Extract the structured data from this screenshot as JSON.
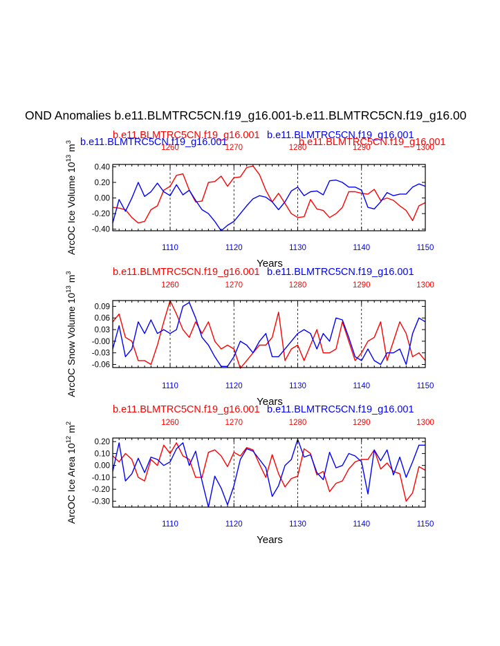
{
  "page_title": "OND Anomalies b.e11.BLMTRC5CN.f19_g16.001-b.e11.BLMTRC5CN.f19_g16.00",
  "colors": {
    "case_a": "#ff0000",
    "case_b": "#0000ff",
    "axis": "#000000"
  },
  "chart_data": [
    {
      "type": "line",
      "id": "ice_volume",
      "ylabel": "ArcOC Ice Volume 10",
      "ylabel_exp": "13",
      "ylabel_unit": " m",
      "ylabel_unit_exp": "3",
      "xlabel": "Years",
      "series_label_red": "b.e11.BLMTRC5CN.f19_g16.001",
      "series_label_blue": "b.e11.BLMTRC5CN.f19_g16.001",
      "series_label_blue_left": "b.e11.BLMTRC5CN.f19_g16.001",
      "series_label_red_right": "b.e11.BLMTRC5CN.f19_g16.001",
      "xlim": [
        1101,
        1150
      ],
      "ylim": [
        -0.42,
        0.43
      ],
      "y_ticks": [
        -0.4,
        -0.2,
        0.0,
        0.2,
        0.4
      ],
      "y_tick_labels": [
        "-0.40",
        "-0.20",
        "0.00",
        "0.20",
        "0.40"
      ],
      "bottom_ticks": [
        1110,
        1120,
        1130,
        1140,
        1150
      ],
      "top_tick_labels": [
        "1260",
        "1270",
        "1280",
        "1290",
        "1300"
      ],
      "x": [
        1101,
        1102,
        1103,
        1104,
        1105,
        1106,
        1107,
        1108,
        1109,
        1110,
        1111,
        1112,
        1113,
        1114,
        1115,
        1116,
        1117,
        1118,
        1119,
        1120,
        1121,
        1122,
        1123,
        1124,
        1125,
        1126,
        1127,
        1128,
        1129,
        1130,
        1131,
        1132,
        1133,
        1134,
        1135,
        1136,
        1137,
        1138,
        1139,
        1140,
        1141,
        1142,
        1143,
        1144,
        1145,
        1146,
        1147,
        1148,
        1149,
        1150
      ],
      "series": [
        {
          "name": "red",
          "color": "#ff0000",
          "values": [
            -0.12,
            -0.13,
            -0.15,
            -0.25,
            -0.32,
            -0.3,
            -0.15,
            -0.1,
            0.1,
            0.15,
            0.29,
            0.31,
            0.1,
            -0.05,
            -0.04,
            0.2,
            0.21,
            0.28,
            0.15,
            0.26,
            0.27,
            0.39,
            0.41,
            0.3,
            0.1,
            -0.05,
            0.06,
            -0.07,
            -0.2,
            -0.25,
            -0.24,
            -0.02,
            -0.14,
            -0.16,
            -0.25,
            -0.2,
            -0.12,
            0.08,
            0.08,
            0.06,
            0.05,
            0.11,
            -0.03,
            0.0,
            -0.03,
            -0.1,
            -0.16,
            -0.29,
            -0.1,
            -0.06
          ]
        },
        {
          "name": "blue",
          "color": "#0000ff",
          "values": [
            -0.32,
            -0.02,
            -0.17,
            0.0,
            0.2,
            0.02,
            0.08,
            0.19,
            0.08,
            0.03,
            0.17,
            0.04,
            0.1,
            -0.03,
            -0.15,
            -0.2,
            -0.3,
            -0.42,
            -0.35,
            -0.3,
            -0.2,
            -0.1,
            -0.01,
            0.03,
            0.01,
            -0.05,
            -0.15,
            -0.05,
            0.09,
            0.14,
            0.03,
            0.08,
            0.09,
            0.04,
            0.22,
            0.23,
            0.2,
            0.14,
            0.14,
            0.1,
            -0.12,
            -0.14,
            -0.05,
            0.07,
            0.03,
            0.05,
            0.05,
            0.14,
            0.18,
            0.15
          ]
        }
      ]
    },
    {
      "type": "line",
      "id": "snow_volume",
      "ylabel": "ArcOC Snow Volume 10",
      "ylabel_exp": "13",
      "ylabel_unit": " m",
      "ylabel_unit_exp": "3",
      "xlabel": "Years",
      "series_label_red": "b.e11.BLMTRC5CN.f19_g16.001",
      "series_label_blue": "b.e11.BLMTRC5CN.f19_g16.001",
      "xlim": [
        1101,
        1150
      ],
      "ylim": [
        -0.068,
        0.105
      ],
      "y_ticks": [
        -0.06,
        -0.03,
        0.0,
        0.03,
        0.06,
        0.09
      ],
      "y_tick_labels": [
        "-0.06",
        "-0.03",
        "-0.00",
        "0.03",
        "0.06",
        "0.09"
      ],
      "bottom_ticks": [
        1110,
        1120,
        1130,
        1140,
        1150
      ],
      "top_tick_labels": [
        "1260",
        "1270",
        "1280",
        "1290",
        "1300"
      ],
      "x": [
        1101,
        1102,
        1103,
        1104,
        1105,
        1106,
        1107,
        1108,
        1109,
        1110,
        1111,
        1112,
        1113,
        1114,
        1115,
        1116,
        1117,
        1118,
        1119,
        1120,
        1121,
        1122,
        1123,
        1124,
        1125,
        1126,
        1127,
        1128,
        1129,
        1130,
        1131,
        1132,
        1133,
        1134,
        1135,
        1136,
        1137,
        1138,
        1139,
        1140,
        1141,
        1142,
        1143,
        1144,
        1145,
        1146,
        1147,
        1148,
        1149,
        1150
      ],
      "series": [
        {
          "name": "red",
          "color": "#ff0000",
          "values": [
            0.05,
            0.07,
            0.01,
            0.0,
            -0.05,
            -0.05,
            -0.06,
            -0.01,
            0.05,
            0.105,
            0.07,
            0.03,
            0.01,
            0.05,
            0.02,
            0.05,
            0.0,
            -0.02,
            -0.01,
            -0.02,
            -0.07,
            -0.05,
            -0.03,
            -0.01,
            -0.01,
            0.01,
            0.075,
            -0.05,
            -0.02,
            -0.01,
            -0.05,
            -0.01,
            0.03,
            -0.03,
            -0.03,
            -0.02,
            0.05,
            0.0,
            -0.05,
            -0.03,
            0.0,
            0.01,
            0.05,
            -0.05,
            0.0,
            0.05,
            0.02,
            -0.04,
            -0.03,
            -0.05
          ]
        },
        {
          "name": "blue",
          "color": "#0000ff",
          "values": [
            -0.02,
            0.04,
            -0.04,
            -0.02,
            0.05,
            0.02,
            0.055,
            0.02,
            0.03,
            0.02,
            0.03,
            0.09,
            0.1,
            0.06,
            0.01,
            -0.01,
            -0.04,
            -0.065,
            -0.065,
            -0.04,
            0.0,
            -0.01,
            -0.03,
            0.0,
            0.02,
            -0.04,
            -0.04,
            -0.02,
            0.0,
            0.02,
            0.03,
            0.02,
            -0.02,
            0.02,
            0.0,
            0.06,
            0.055,
            0.01,
            -0.04,
            -0.05,
            -0.02,
            -0.05,
            -0.06,
            -0.03,
            -0.03,
            -0.02,
            -0.06,
            0.02,
            0.06,
            0.05
          ]
        }
      ]
    },
    {
      "type": "line",
      "id": "ice_area",
      "ylabel": "ArcOC Ice Area 10",
      "ylabel_exp": "12",
      "ylabel_unit": " m",
      "ylabel_unit_exp": "2",
      "xlabel": "Years",
      "series_label_red": "b.e11.BLMTRC5CN.f19_g16.001",
      "series_label_blue": "b.e11.BLMTRC5CN.f19_g16.001",
      "xlim": [
        1101,
        1150
      ],
      "ylim": [
        -0.35,
        0.23
      ],
      "y_ticks": [
        -0.3,
        -0.2,
        -0.1,
        0.0,
        0.1,
        0.2
      ],
      "y_tick_labels": [
        "-0.30",
        "-0.20",
        "-0.10",
        "0.00",
        "0.10",
        "0.20"
      ],
      "bottom_ticks": [
        1110,
        1120,
        1130,
        1140,
        1150
      ],
      "top_tick_labels": [
        "1260",
        "1270",
        "1280",
        "1290",
        "1300"
      ],
      "x": [
        1101,
        1102,
        1103,
        1104,
        1105,
        1106,
        1107,
        1108,
        1109,
        1110,
        1111,
        1112,
        1113,
        1114,
        1115,
        1116,
        1117,
        1118,
        1119,
        1120,
        1121,
        1122,
        1123,
        1124,
        1125,
        1126,
        1127,
        1128,
        1129,
        1130,
        1131,
        1132,
        1133,
        1134,
        1135,
        1136,
        1137,
        1138,
        1139,
        1140,
        1141,
        1142,
        1143,
        1144,
        1145,
        1146,
        1147,
        1148,
        1149,
        1150
      ],
      "series": [
        {
          "name": "red",
          "color": "#ff0000",
          "values": [
            0.08,
            0.03,
            0.1,
            0.05,
            -0.1,
            -0.13,
            0.05,
            0.0,
            0.17,
            0.1,
            0.19,
            0.08,
            0.05,
            -0.1,
            -0.1,
            0.11,
            0.13,
            0.08,
            -0.01,
            0.11,
            0.08,
            0.15,
            0.13,
            0.01,
            -0.1,
            0.09,
            -0.07,
            -0.18,
            -0.11,
            -0.09,
            0.14,
            0.1,
            -0.08,
            -0.05,
            -0.22,
            -0.15,
            -0.13,
            -0.03,
            0.03,
            0.05,
            0.05,
            0.13,
            -0.03,
            0.02,
            -0.05,
            -0.07,
            -0.3,
            -0.23,
            -0.01,
            -0.04
          ]
        },
        {
          "name": "blue",
          "color": "#0000ff",
          "values": [
            -0.05,
            0.19,
            -0.13,
            -0.07,
            0.06,
            -0.06,
            0.07,
            0.05,
            0.0,
            0.03,
            0.14,
            0.19,
            0.0,
            0.12,
            -0.13,
            -0.35,
            -0.09,
            -0.19,
            -0.33,
            -0.17,
            0.05,
            0.14,
            0.12,
            0.05,
            -0.02,
            -0.26,
            -0.17,
            0.0,
            0.05,
            0.22,
            0.07,
            0.09,
            -0.06,
            -0.12,
            0.11,
            -0.02,
            0.0,
            0.1,
            0.08,
            0.03,
            -0.24,
            0.13,
            0.04,
            0.13,
            -0.08,
            0.07,
            -0.1,
            0.03,
            0.17,
            0.17
          ]
        }
      ]
    }
  ]
}
